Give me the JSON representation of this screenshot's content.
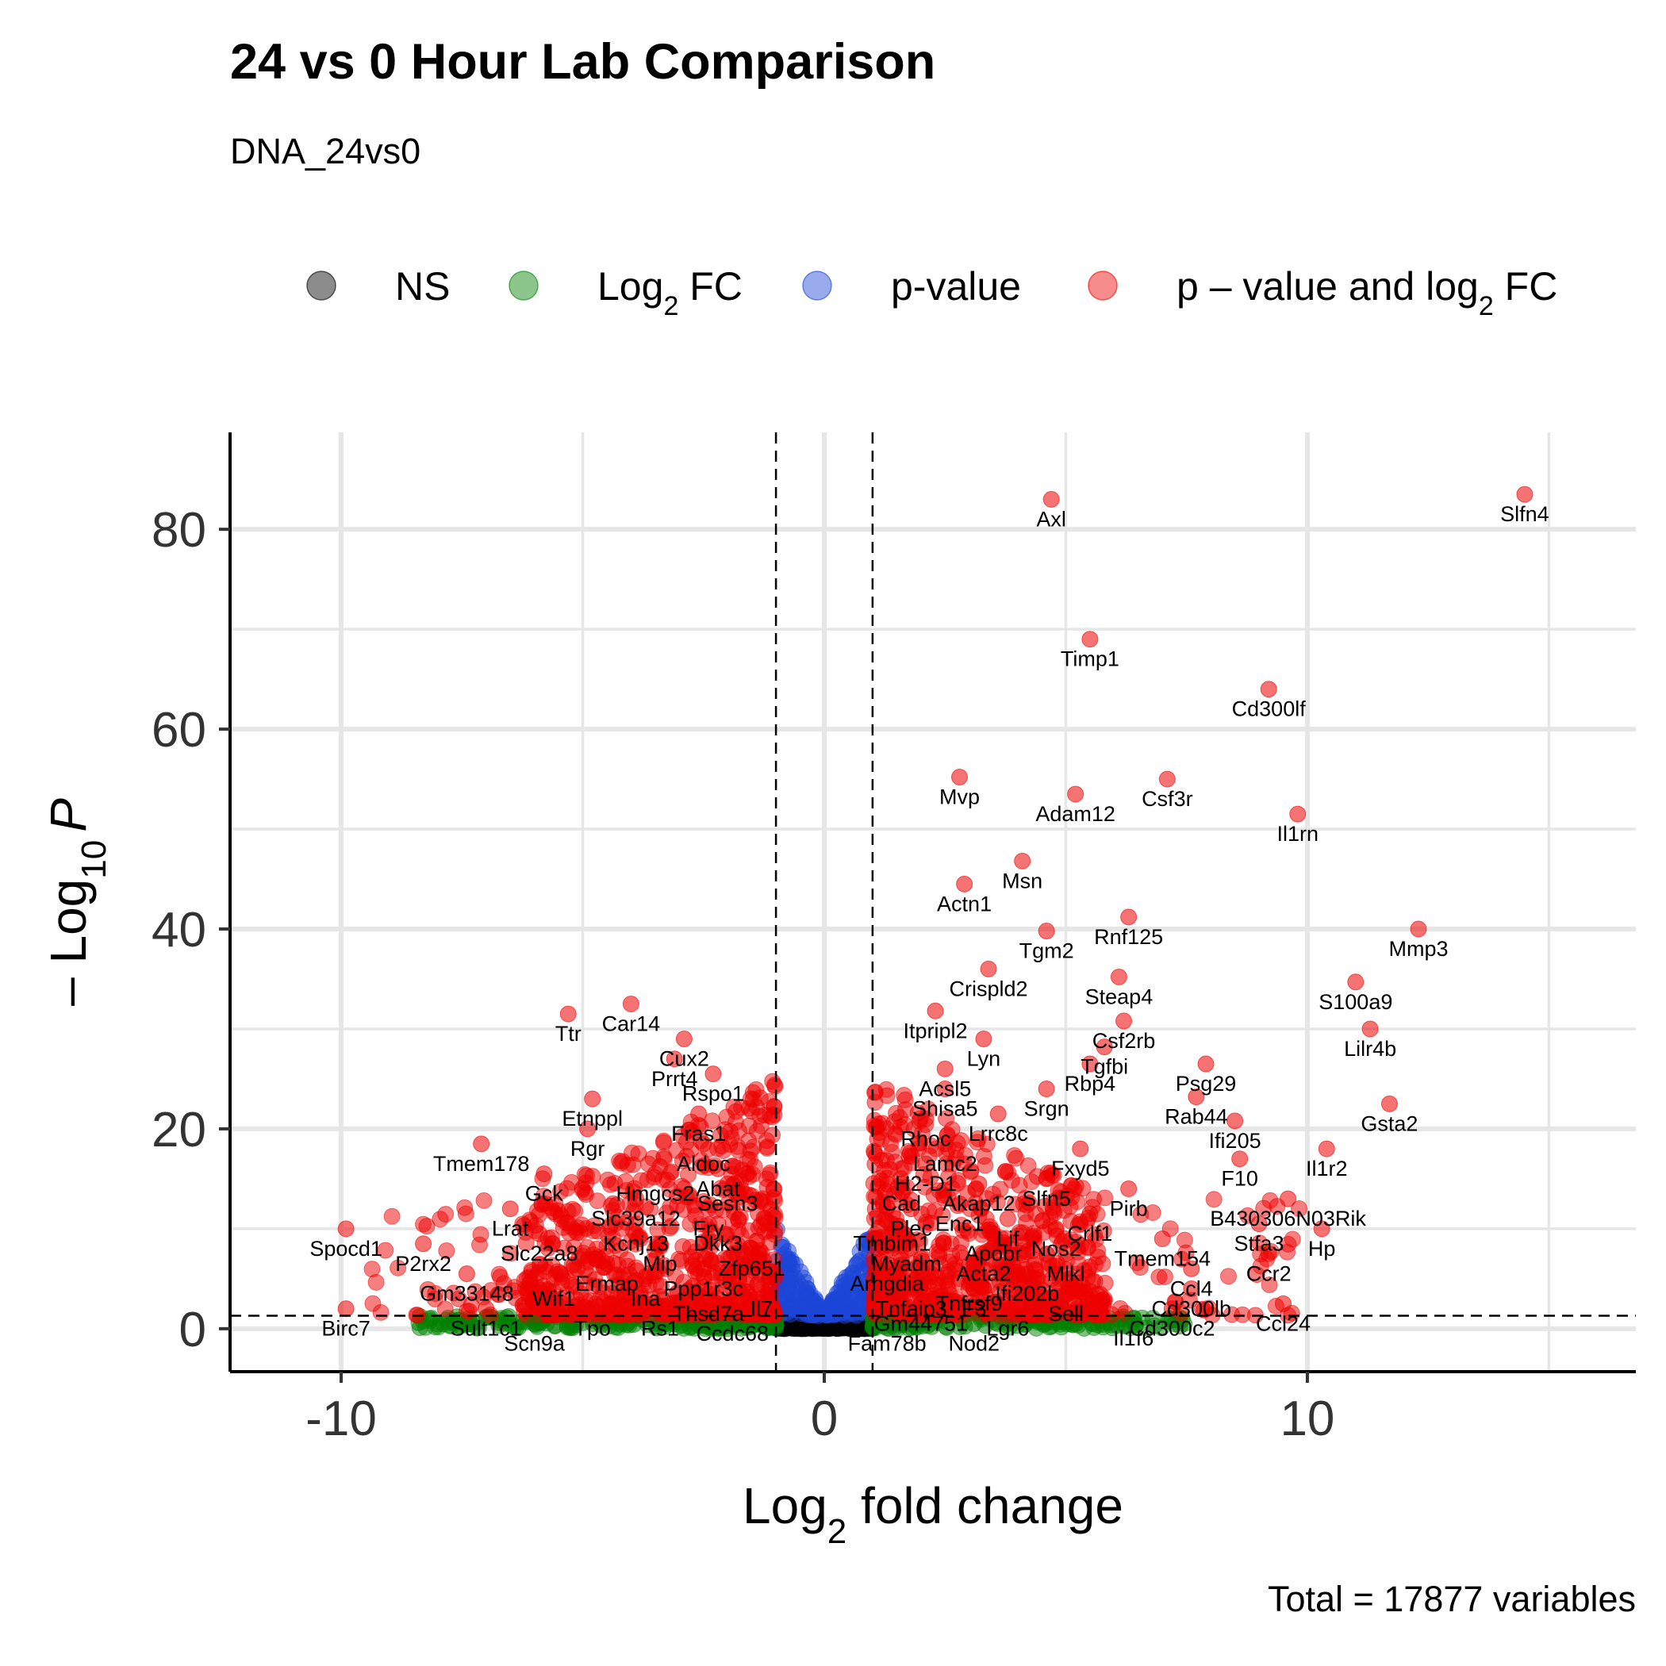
{
  "title": "24 vs 0 Hour Lab Comparison",
  "subtitle": "DNA_24vs0",
  "caption": "Total = 17877 variables",
  "colors": {
    "ns": "#000000",
    "log2fc": "#008000",
    "pvalue": "#1c45d8",
    "both": "#ee0000"
  },
  "legend": [
    {
      "key": "ns",
      "label": "NS",
      "sub": "",
      "post": ""
    },
    {
      "key": "log2fc",
      "label": "Log",
      "sub": "2",
      "post": " FC"
    },
    {
      "key": "pvalue",
      "label": "p-value",
      "sub": "",
      "post": ""
    },
    {
      "key": "both",
      "label": "p – value and log",
      "sub": "2",
      "post": " FC"
    }
  ],
  "chart_data": {
    "type": "scatter",
    "xlabel": {
      "main": "Log",
      "sub": "2",
      "post": " fold change"
    },
    "ylabel": {
      "pre": "– Log",
      "sub": "10",
      "post": "P"
    },
    "xlim": [
      -12.3,
      16.8
    ],
    "ylim": [
      -4.3,
      89.7
    ],
    "xticks": [
      -10,
      0,
      10
    ],
    "xtick_labels": [
      "-10",
      "0",
      "10"
    ],
    "yticks": [
      0,
      20,
      40,
      60,
      80
    ],
    "ytick_labels": [
      "0",
      "20",
      "40",
      "60",
      "80"
    ],
    "grid": true,
    "legend_position": "top",
    "fc_cutoff": 1,
    "p_cutoff_line": 1.3,
    "labeled_points": [
      {
        "label": "Slfn4",
        "x": 14.5,
        "y": 83.5
      },
      {
        "label": "Axl",
        "x": 4.7,
        "y": 83.0
      },
      {
        "label": "Timp1",
        "x": 5.5,
        "y": 69.0
      },
      {
        "label": "Cd300lf",
        "x": 9.2,
        "y": 64.0
      },
      {
        "label": "Mvp",
        "x": 2.8,
        "y": 55.2
      },
      {
        "label": "Csf3r",
        "x": 7.1,
        "y": 55.0
      },
      {
        "label": "Adam12",
        "x": 5.2,
        "y": 53.5
      },
      {
        "label": "Il1rn",
        "x": 9.8,
        "y": 51.5
      },
      {
        "label": "Msn",
        "x": 4.1,
        "y": 46.8
      },
      {
        "label": "Actn1",
        "x": 2.9,
        "y": 44.5
      },
      {
        "label": "Mmp3",
        "x": 12.3,
        "y": 40.0
      },
      {
        "label": "Rnf125",
        "x": 6.3,
        "y": 41.2
      },
      {
        "label": "Tgm2",
        "x": 4.6,
        "y": 39.8
      },
      {
        "label": "Crispld2",
        "x": 3.4,
        "y": 36.0
      },
      {
        "label": "S100a9",
        "x": 11.0,
        "y": 34.7
      },
      {
        "label": "Steap4",
        "x": 6.1,
        "y": 35.2
      },
      {
        "label": "Itpripl2",
        "x": 2.3,
        "y": 31.8
      },
      {
        "label": "Csf2rb",
        "x": 6.2,
        "y": 30.8
      },
      {
        "label": "Lilr4b",
        "x": 11.3,
        "y": 30.0
      },
      {
        "label": "Lyn",
        "x": 3.3,
        "y": 29.0
      },
      {
        "label": "Tgfbi",
        "x": 5.8,
        "y": 28.2
      },
      {
        "label": "Acsl5",
        "x": 2.5,
        "y": 26.0
      },
      {
        "label": "Rbp4",
        "x": 5.5,
        "y": 26.5
      },
      {
        "label": "Psg29",
        "x": 7.9,
        "y": 26.5
      },
      {
        "label": "Shisa5",
        "x": 2.5,
        "y": 24.0
      },
      {
        "label": "Srgn",
        "x": 4.6,
        "y": 24.0
      },
      {
        "label": "Gsta2",
        "x": 11.7,
        "y": 22.5
      },
      {
        "label": "Rab44",
        "x": 7.7,
        "y": 23.2
      },
      {
        "label": "Rhoc",
        "x": 2.1,
        "y": 21.0
      },
      {
        "label": "Lrrc8c",
        "x": 3.6,
        "y": 21.5
      },
      {
        "label": "Ifi205",
        "x": 8.5,
        "y": 20.8
      },
      {
        "label": "Lamc2",
        "x": 2.5,
        "y": 18.5
      },
      {
        "label": "Fxyd5",
        "x": 5.3,
        "y": 18.0
      },
      {
        "label": "Il1r2",
        "x": 10.4,
        "y": 18.0
      },
      {
        "label": "H2-D1",
        "x": 2.1,
        "y": 16.5
      },
      {
        "label": "F10",
        "x": 8.6,
        "y": 17.0
      },
      {
        "label": "Akap12",
        "x": 3.2,
        "y": 14.5
      },
      {
        "label": "Slfn5",
        "x": 4.6,
        "y": 15.0
      },
      {
        "label": "Pirb",
        "x": 6.3,
        "y": 14.0
      },
      {
        "label": "B430306N03Rik",
        "x": 9.6,
        "y": 13.0
      },
      {
        "label": "Cad",
        "x": 1.6,
        "y": 14.5
      },
      {
        "label": "Enc1",
        "x": 2.8,
        "y": 12.5
      },
      {
        "label": "Plec",
        "x": 1.8,
        "y": 12.0
      },
      {
        "label": "Crlf1",
        "x": 5.5,
        "y": 11.5
      },
      {
        "label": "Stfa3",
        "x": 9.0,
        "y": 10.5
      },
      {
        "label": "Hp",
        "x": 10.3,
        "y": 10.0
      },
      {
        "label": "Lif",
        "x": 3.8,
        "y": 11.0
      },
      {
        "label": "Tmbim1",
        "x": 1.4,
        "y": 10.5
      },
      {
        "label": "Nos2",
        "x": 4.8,
        "y": 10.0
      },
      {
        "label": "Tmem154",
        "x": 7.0,
        "y": 9.0
      },
      {
        "label": "Apobr",
        "x": 3.5,
        "y": 9.5
      },
      {
        "label": "Myadm",
        "x": 1.7,
        "y": 8.5
      },
      {
        "label": "Ccr2",
        "x": 9.2,
        "y": 7.5
      },
      {
        "label": "Acta2",
        "x": 3.3,
        "y": 7.5
      },
      {
        "label": "Arhgdia",
        "x": 1.3,
        "y": 6.5
      },
      {
        "label": "Mlkl",
        "x": 5.0,
        "y": 7.5
      },
      {
        "label": "Ccl4",
        "x": 7.6,
        "y": 6.0
      },
      {
        "label": "Ifi202b",
        "x": 4.2,
        "y": 5.5
      },
      {
        "label": "Tnfrsf9",
        "x": 3.0,
        "y": 4.5
      },
      {
        "label": "Cd300lb",
        "x": 7.6,
        "y": 4.0
      },
      {
        "label": "Sell",
        "x": 5.0,
        "y": 3.5
      },
      {
        "label": "Ccl24",
        "x": 9.5,
        "y": 2.5
      },
      {
        "label": "Cd300c2",
        "x": 7.2,
        "y": 2.0
      },
      {
        "label": "Lgr6",
        "x": 3.8,
        "y": 2.0
      },
      {
        "label": "Gm44751",
        "x": 2.0,
        "y": 2.5
      },
      {
        "label": "F3",
        "x": 3.1,
        "y": 4.0
      },
      {
        "label": "Tnfaip3",
        "x": 1.8,
        "y": 4.0
      },
      {
        "label": "Il1f6",
        "x": 6.4,
        "y": 1.0
      },
      {
        "label": "Nod2",
        "x": 3.1,
        "y": 0.5
      },
      {
        "label": "Fam78b",
        "x": 1.3,
        "y": 0.5
      },
      {
        "label": "Ttr",
        "x": -5.3,
        "y": 31.5
      },
      {
        "label": "Car14",
        "x": -4.0,
        "y": 32.5
      },
      {
        "label": "Cux2",
        "x": -2.9,
        "y": 29.0
      },
      {
        "label": "Prrt4",
        "x": -3.1,
        "y": 27.0
      },
      {
        "label": "Rspo1",
        "x": -2.3,
        "y": 25.5
      },
      {
        "label": "Etnppl",
        "x": -4.8,
        "y": 23.0
      },
      {
        "label": "Fras1",
        "x": -2.6,
        "y": 21.5
      },
      {
        "label": "Rgr",
        "x": -4.9,
        "y": 20.0
      },
      {
        "label": "Tmem178",
        "x": -7.1,
        "y": 18.5
      },
      {
        "label": "Aldoc",
        "x": -2.5,
        "y": 18.5
      },
      {
        "label": "Gck",
        "x": -5.8,
        "y": 15.5
      },
      {
        "label": "Hmgcs2",
        "x": -3.5,
        "y": 15.5
      },
      {
        "label": "Abat",
        "x": -2.2,
        "y": 16.0
      },
      {
        "label": "Sesn3",
        "x": -2.0,
        "y": 14.5
      },
      {
        "label": "Slc39a12",
        "x": -3.9,
        "y": 13.0
      },
      {
        "label": "Lrat",
        "x": -6.5,
        "y": 12.0
      },
      {
        "label": "Fry",
        "x": -2.4,
        "y": 12.0
      },
      {
        "label": "Kcnj13",
        "x": -3.9,
        "y": 10.5
      },
      {
        "label": "Dkk3",
        "x": -2.2,
        "y": 10.5
      },
      {
        "label": "Spocd1",
        "x": -9.9,
        "y": 10.0
      },
      {
        "label": "Slc22a8",
        "x": -5.9,
        "y": 9.5
      },
      {
        "label": "Mip",
        "x": -3.4,
        "y": 8.5
      },
      {
        "label": "Zfp651",
        "x": -1.5,
        "y": 8.0
      },
      {
        "label": "P2rx2",
        "x": -8.3,
        "y": 8.5
      },
      {
        "label": "Ermap",
        "x": -4.5,
        "y": 6.5
      },
      {
        "label": "Ppp1r3c",
        "x": -2.5,
        "y": 6.0
      },
      {
        "label": "Gm33148",
        "x": -7.4,
        "y": 5.5
      },
      {
        "label": "Wif1",
        "x": -5.6,
        "y": 5.0
      },
      {
        "label": "Ina",
        "x": -3.7,
        "y": 5.0
      },
      {
        "label": "Il7",
        "x": -1.3,
        "y": 4.0
      },
      {
        "label": "Thsd7a",
        "x": -2.4,
        "y": 3.5
      },
      {
        "label": "Birc7",
        "x": -9.9,
        "y": 2.0
      },
      {
        "label": "Sult1c1",
        "x": -7.0,
        "y": 2.0
      },
      {
        "label": "Tpo",
        "x": -4.8,
        "y": 2.0
      },
      {
        "label": "Rs1",
        "x": -3.4,
        "y": 2.0
      },
      {
        "label": "Ccdc68",
        "x": -1.9,
        "y": 1.5
      },
      {
        "label": "Scn9a",
        "x": -6.0,
        "y": 0.5
      }
    ]
  }
}
